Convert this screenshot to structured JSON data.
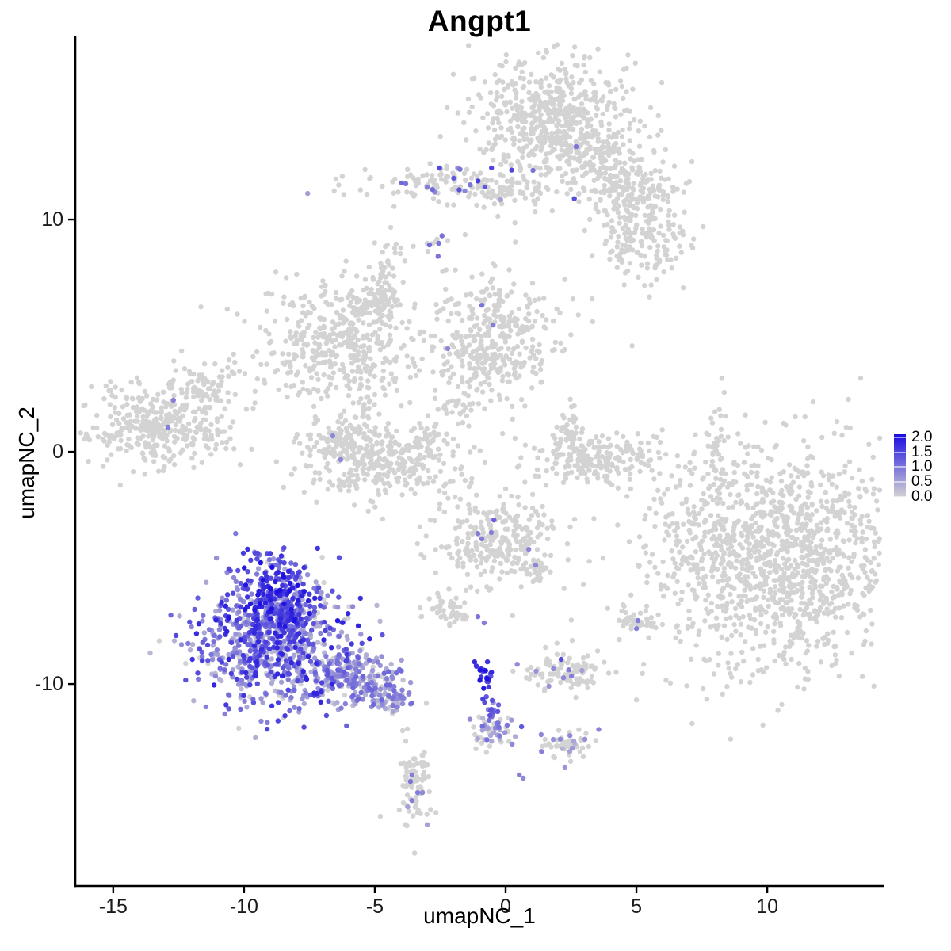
{
  "page": {
    "background": "#FFFFFF"
  },
  "chart_data": {
    "type": "scatter",
    "title": "Angpt1",
    "xlabel": "umapNC_1",
    "ylabel": "umapNC_2",
    "xlim": [
      -16.45,
      14.45
    ],
    "ylim": [
      -18.7,
      17.92
    ],
    "x_ticks": [
      -15,
      -10,
      -5,
      0,
      5,
      10
    ],
    "y_ticks": [
      -10,
      0,
      10
    ],
    "grid": false,
    "legend_position": "right",
    "point_radius": 3.2,
    "colorscale": {
      "low": "#D3D3D3",
      "high": "#1A0CE0",
      "vmax": 2.1,
      "legend_breaks": [
        2.0,
        1.5,
        1.0,
        0.5,
        0.0
      ],
      "legend_labels": [
        "2.0",
        "1.5",
        "1.0",
        "0.5",
        "0.0"
      ]
    },
    "clusters": [
      {
        "name": "top-main",
        "cx": 2.0,
        "cy": 14.2,
        "sx": 1.5,
        "sy": 1.35,
        "n": 620
      },
      {
        "name": "top-tail-1",
        "cx": 4.0,
        "cy": 12.0,
        "sx": 0.9,
        "sy": 0.75,
        "n": 140
      },
      {
        "name": "top-tail-2",
        "cx": 5.36,
        "cy": 11.26,
        "sx": 0.76,
        "sy": 0.5,
        "n": 80
      },
      {
        "name": "top-tail-3",
        "cx": 5.21,
        "cy": 9.2,
        "sx": 0.9,
        "sy": 0.9,
        "n": 160
      },
      {
        "name": "band-11",
        "cx": -2.0,
        "cy": 11.57,
        "sx": 1.58,
        "sy": 0.44,
        "n": 150,
        "frac": 0.13,
        "vmin": 0.5,
        "vmax": 1.6
      },
      {
        "name": "band-11-right",
        "cx": 0.52,
        "cy": 11.16,
        "sx": 0.67,
        "sy": 0.27,
        "n": 35
      },
      {
        "name": "pair-8-5",
        "cx": -2.73,
        "cy": 8.87,
        "sx": 0.18,
        "sy": 0.35,
        "n": 12,
        "frac": 0.25,
        "vmin": 0.8,
        "vmax": 1.1,
        "rot": -40
      },
      {
        "name": "midleft-main",
        "cx": -6.45,
        "cy": 4.61,
        "sx": 1.45,
        "sy": 1.3,
        "n": 400
      },
      {
        "name": "midleft-arm",
        "cx": -5.03,
        "cy": 6.42,
        "sx": 0.55,
        "sy": 0.48,
        "n": 70
      },
      {
        "name": "midleft-streak",
        "cx": -4.58,
        "cy": 7.34,
        "sx": 0.24,
        "sy": 0.75,
        "n": 40
      },
      {
        "name": "midleft-streaktop",
        "cx": -4.27,
        "cy": 8.87,
        "sx": 0.2,
        "sy": 0.5,
        "n": 8
      },
      {
        "name": "midcenter",
        "cx": -0.48,
        "cy": 4.85,
        "sx": 1.27,
        "sy": 1.37,
        "n": 380
      },
      {
        "name": "connector",
        "cx": -2.06,
        "cy": 2.22,
        "sx": 0.3,
        "sy": 0.75,
        "n": 25
      },
      {
        "name": "crescent-main",
        "cx": -4.94,
        "cy": -0.34,
        "sx": 1.58,
        "sy": 0.75,
        "n": 330
      },
      {
        "name": "crescent-rim",
        "cx": -6.15,
        "cy": 0.61,
        "sx": 0.42,
        "sy": 0.44,
        "n": 60
      },
      {
        "name": "crescent-tip",
        "cx": -2.97,
        "cy": 0.34,
        "sx": 0.3,
        "sy": 0.41,
        "n": 30
      },
      {
        "name": "streak-left",
        "cx": -5.33,
        "cy": 2.22,
        "sx": 0.24,
        "sy": 0.89,
        "n": 35
      },
      {
        "name": "left-main",
        "cx": -13.21,
        "cy": 1.13,
        "sx": 1.39,
        "sy": 0.92,
        "n": 360
      },
      {
        "name": "left-arm",
        "cx": -11.52,
        "cy": 2.83,
        "sx": 0.67,
        "sy": 0.37,
        "n": 60,
        "rot": -28
      },
      {
        "name": "left-arm-tip",
        "cx": -10.55,
        "cy": 3.48,
        "sx": 0.24,
        "sy": 0.24,
        "n": 12
      },
      {
        "name": "hook-main",
        "cx": 3.45,
        "cy": -0.34,
        "sx": 1.21,
        "sy": 0.55,
        "n": 200
      },
      {
        "name": "hook-arm",
        "cx": 2.39,
        "cy": 0.72,
        "sx": 0.33,
        "sy": 0.68,
        "n": 50
      },
      {
        "name": "right-big",
        "cx": 10.3,
        "cy": -4.44,
        "sx": 2.42,
        "sy": 2.32,
        "n": 1350
      },
      {
        "name": "right-streak",
        "cx": 8.0,
        "cy": 0.17,
        "sx": 0.15,
        "sy": 0.82,
        "n": 28
      },
      {
        "name": "mid-lower",
        "cx": -0.33,
        "cy": -3.69,
        "sx": 1.15,
        "sy": 0.96,
        "n": 260
      },
      {
        "name": "mid-lower-tail",
        "cx": 1.09,
        "cy": -5.19,
        "sx": 0.3,
        "sy": 0.34,
        "n": 30
      },
      {
        "name": "small-blob",
        "cx": -2.15,
        "cy": -6.83,
        "sx": 0.45,
        "sy": 0.38,
        "n": 50
      },
      {
        "name": "dark-streak-top",
        "cx": -0.88,
        "cy": -9.42,
        "sx": 0.18,
        "sy": 0.27,
        "n": 12,
        "frac": 1.0,
        "vmin": 1.6,
        "vmax": 2.1
      },
      {
        "name": "dark-streak-mid",
        "cx": -0.64,
        "cy": -10.17,
        "sx": 0.12,
        "sy": 0.48,
        "n": 14,
        "frac": 1.0,
        "vmin": 1.2,
        "vmax": 2.0
      },
      {
        "name": "dark-streak-low",
        "cx": -0.45,
        "cy": -11.09,
        "sx": 0.15,
        "sy": 0.41,
        "n": 12,
        "frac": 0.9,
        "vmin": 0.6,
        "vmax": 1.6
      },
      {
        "name": "streak-blob",
        "cx": -0.52,
        "cy": -11.95,
        "sx": 0.39,
        "sy": 0.51,
        "n": 55,
        "frac": 0.5,
        "vmin": 0.3,
        "vmax": 1.1
      },
      {
        "name": "bottom-mid",
        "cx": 2.3,
        "cy": -9.45,
        "sx": 0.79,
        "sy": 0.38,
        "n": 100,
        "frac": 0.05,
        "vmin": 0.5,
        "vmax": 0.9
      },
      {
        "name": "bottom-chain-blob",
        "cx": 2.39,
        "cy": -12.66,
        "sx": 0.45,
        "sy": 0.38,
        "n": 55,
        "frac": 0.25,
        "vmin": 0.3,
        "vmax": 0.9
      },
      {
        "name": "grey-pair-blob",
        "cx": 5.06,
        "cy": -7.31,
        "sx": 0.42,
        "sy": 0.3,
        "n": 35
      },
      {
        "name": "bottom-curved",
        "cx": -3.48,
        "cy": -14.44,
        "sx": 0.3,
        "sy": 0.96,
        "n": 85,
        "frac": 0.06,
        "vmin": 0.4,
        "vmax": 0.8
      },
      {
        "name": "angpt1-top-lobe",
        "cx": -8.82,
        "cy": -5.9,
        "sx": 0.82,
        "sy": 0.82,
        "n": 230,
        "frac": 0.95,
        "vmin": 0.4,
        "vmax": 2.1,
        "pow": 0.9
      },
      {
        "name": "angpt1-main",
        "cx": -8.94,
        "cy": -8.46,
        "sx": 1.52,
        "sy": 1.26,
        "n": 680,
        "frac": 0.93,
        "vmin": 0.25,
        "vmax": 1.9,
        "pow": 1.3
      },
      {
        "name": "angpt1-bridge",
        "cx": -8.73,
        "cy": -7.1,
        "sx": 0.91,
        "sy": 0.51,
        "n": 150,
        "frac": 0.93,
        "vmin": 0.3,
        "vmax": 2.0,
        "pow": 1.1
      },
      {
        "name": "angpt1-tail-a",
        "cx": -6.45,
        "cy": -9.39,
        "sx": 0.67,
        "sy": 0.44,
        "n": 120,
        "frac": 0.85,
        "vmin": 0.2,
        "vmax": 1.3,
        "rot": 25
      },
      {
        "name": "angpt1-tail-b",
        "cx": -5.24,
        "cy": -9.97,
        "sx": 0.61,
        "sy": 0.41,
        "n": 100,
        "frac": 0.8,
        "vmin": 0.2,
        "vmax": 1.2,
        "rot": 25
      },
      {
        "name": "angpt1-tail-c",
        "cx": -4.24,
        "cy": -10.58,
        "sx": 0.42,
        "sy": 0.34,
        "n": 60,
        "frac": 0.75,
        "vmin": 0.2,
        "vmax": 1.1,
        "rot": 25
      }
    ],
    "extra_points": [
      [
        2.7,
        13.14,
        1.0
      ],
      [
        -12.7,
        2.22,
        0.9
      ],
      [
        -12.91,
        1.06,
        0.9
      ],
      [
        -0.91,
        6.31,
        1.0
      ],
      [
        -0.48,
        5.46,
        0.9
      ],
      [
        -2.21,
        4.44,
        0.8
      ],
      [
        -6.61,
        0.68,
        0.8
      ],
      [
        -6.3,
        -0.34,
        0.8
      ],
      [
        -2.58,
        8.42,
        1.0
      ],
      [
        -0.45,
        -2.94,
        1.2
      ],
      [
        -1.06,
        -3.52,
        0.9
      ],
      [
        -0.55,
        -3.48,
        0.9
      ],
      [
        -0.91,
        -3.75,
        0.9
      ],
      [
        0.88,
        -4.2,
        0.8
      ],
      [
        1.15,
        -4.88,
        0.8
      ],
      [
        -1.06,
        -7.1,
        1.0
      ],
      [
        -0.82,
        -7.37,
        0.9
      ],
      [
        2.12,
        -8.94,
        1.4
      ],
      [
        2.42,
        -9.39,
        0.9
      ],
      [
        2.21,
        -9.73,
        0.8
      ],
      [
        2.52,
        -9.66,
        0.9
      ],
      [
        0.06,
        -11.77,
        1.0
      ],
      [
        0.61,
        -11.84,
        1.3
      ],
      [
        1.36,
        -12.18,
        0.8
      ],
      [
        1.82,
        -12.39,
        0.7
      ],
      [
        -3.58,
        -13.92,
        0.9
      ],
      [
        -3.64,
        -14.2,
        1.0
      ],
      [
        -3.36,
        -14.68,
        0.9
      ],
      [
        -3.18,
        -14.68,
        0.8
      ],
      [
        -3.58,
        -15.02,
        0.9
      ],
      [
        0.52,
        -13.92,
        0.9
      ],
      [
        0.67,
        -14.06,
        0.8
      ],
      [
        5.06,
        -7.27,
        0.9
      ],
      [
        5.0,
        -7.61,
        0.9
      ],
      [
        6.79,
        7.06,
        0
      ],
      [
        8.24,
        0.96,
        0
      ],
      [
        7.88,
        -0.61,
        0
      ],
      [
        -3.82,
        -12.46,
        0
      ],
      [
        -3.94,
        -12.01,
        0
      ],
      [
        -4.79,
        -15.7,
        0
      ],
      [
        -10.64,
        6.14,
        0
      ]
    ]
  }
}
